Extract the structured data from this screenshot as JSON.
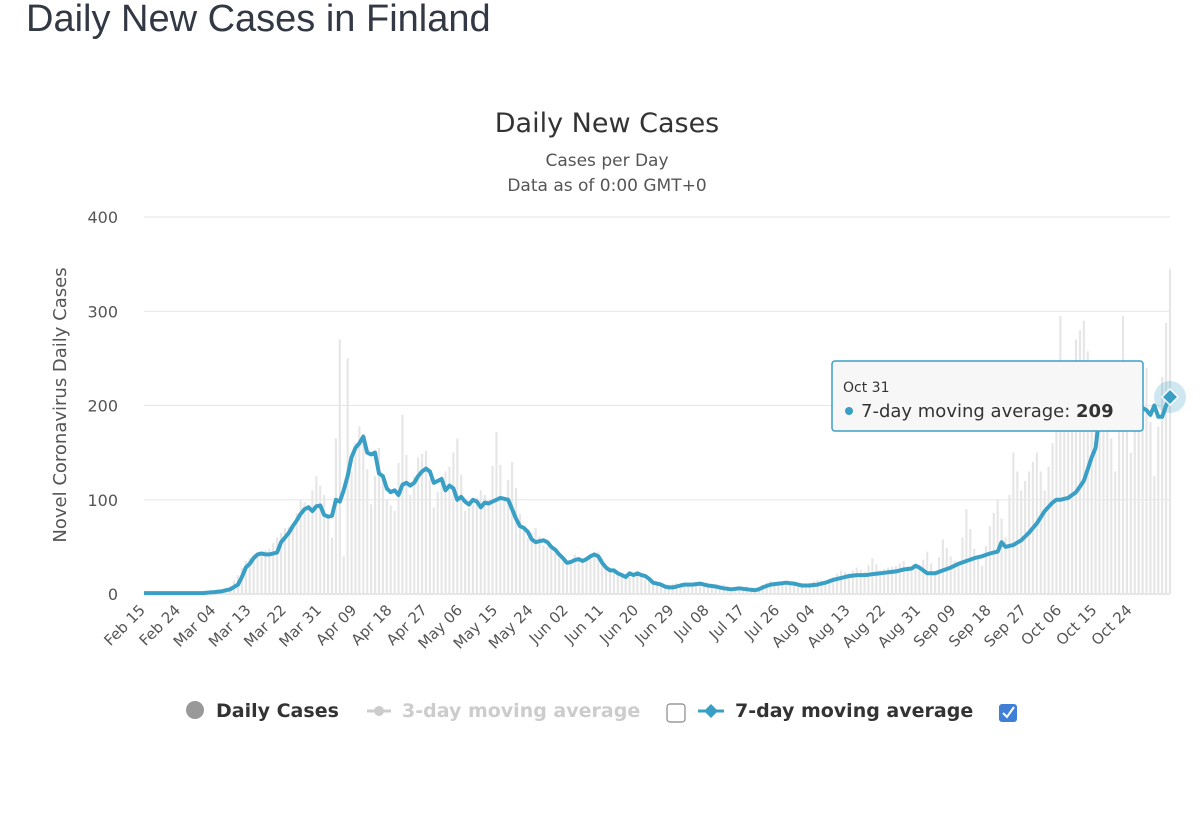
{
  "page": {
    "title": "Daily New Cases in Finland"
  },
  "chart_data": {
    "type": "bar",
    "title": "Daily New Cases",
    "subtitle": "Cases per Day",
    "subtitle2": "Data as of 0:00 GMT+0",
    "ylabel": "Novel Coronavirus Daily Cases",
    "xlabel": "",
    "ylim": [
      0,
      400
    ],
    "y_ticks": [
      "0",
      "100",
      "200",
      "300",
      "400"
    ],
    "grid": true,
    "x_tick_labels": [
      "Feb 15",
      "Feb 24",
      "Mar 04",
      "Mar 13",
      "Mar 22",
      "Mar 31",
      "Apr 09",
      "Apr 18",
      "Apr 27",
      "May 06",
      "May 15",
      "May 24",
      "Jun 02",
      "Jun 11",
      "Jun 20",
      "Jun 29",
      "Jul 08",
      "Jul 17",
      "Jul 26",
      "Aug 04",
      "Aug 13",
      "Aug 22",
      "Aug 31",
      "Sep 09",
      "Sep 18",
      "Sep 27",
      "Oct 06",
      "Oct 15",
      "Oct 24"
    ],
    "colors": {
      "daily_bar": "#e6e6e6",
      "avg7_line": "#3a9fc5",
      "avg3": "#cccccc",
      "grid": "#e6e6e6",
      "legend_daily": "#999999",
      "checkbox": "#3f7fd6"
    },
    "series": [
      {
        "name": "Daily Cases",
        "points": [
          [
            0,
            1
          ],
          [
            5,
            1
          ],
          [
            10,
            1
          ],
          [
            14,
            2
          ],
          [
            17,
            3
          ],
          [
            20,
            5
          ],
          [
            22,
            8
          ],
          [
            24,
            20
          ],
          [
            26,
            35
          ],
          [
            28,
            42
          ],
          [
            30,
            45
          ],
          [
            32,
            48
          ],
          [
            34,
            60
          ],
          [
            36,
            70
          ],
          [
            38,
            72
          ],
          [
            40,
            100
          ],
          [
            42,
            95
          ],
          [
            44,
            125
          ],
          [
            46,
            105
          ],
          [
            48,
            60
          ],
          [
            50,
            270
          ],
          [
            51,
            40
          ],
          [
            52,
            250
          ],
          [
            53,
            130
          ],
          [
            54,
            160
          ],
          [
            55,
            178
          ],
          [
            56,
            170
          ],
          [
            58,
            95
          ],
          [
            60,
            155
          ],
          [
            62,
            100
          ],
          [
            64,
            88
          ],
          [
            66,
            190
          ],
          [
            68,
            105
          ],
          [
            70,
            145
          ],
          [
            72,
            152
          ],
          [
            74,
            92
          ],
          [
            76,
            125
          ],
          [
            78,
            135
          ],
          [
            80,
            165
          ],
          [
            82,
            88
          ],
          [
            84,
            95
          ],
          [
            86,
            110
          ],
          [
            88,
            100
          ],
          [
            90,
            172
          ],
          [
            92,
            102
          ],
          [
            94,
            140
          ],
          [
            96,
            85
          ],
          [
            98,
            60
          ],
          [
            100,
            70
          ],
          [
            102,
            52
          ],
          [
            104,
            48
          ],
          [
            106,
            38
          ],
          [
            108,
            30
          ],
          [
            110,
            42
          ],
          [
            112,
            35
          ],
          [
            114,
            40
          ],
          [
            116,
            45
          ],
          [
            118,
            30
          ],
          [
            120,
            25
          ],
          [
            122,
            20
          ],
          [
            124,
            18
          ],
          [
            126,
            22
          ],
          [
            128,
            15
          ],
          [
            130,
            12
          ],
          [
            132,
            8
          ],
          [
            134,
            10
          ],
          [
            136,
            12
          ],
          [
            138,
            8
          ],
          [
            140,
            9
          ],
          [
            142,
            11
          ],
          [
            144,
            9
          ],
          [
            146,
            8
          ],
          [
            148,
            10
          ],
          [
            150,
            7
          ],
          [
            152,
            6
          ],
          [
            154,
            8
          ],
          [
            156,
            5
          ],
          [
            158,
            10
          ],
          [
            160,
            14
          ],
          [
            162,
            10
          ],
          [
            164,
            12
          ],
          [
            166,
            9
          ],
          [
            168,
            10
          ],
          [
            170,
            12
          ],
          [
            172,
            15
          ],
          [
            174,
            14
          ],
          [
            176,
            18
          ],
          [
            178,
            25
          ],
          [
            180,
            22
          ],
          [
            182,
            28
          ],
          [
            184,
            24
          ],
          [
            186,
            38
          ],
          [
            188,
            25
          ],
          [
            190,
            28
          ],
          [
            192,
            30
          ],
          [
            194,
            35
          ],
          [
            196,
            24
          ],
          [
            198,
            28
          ],
          [
            200,
            45
          ],
          [
            202,
            20
          ],
          [
            204,
            58
          ],
          [
            206,
            40
          ],
          [
            208,
            30
          ],
          [
            210,
            90
          ],
          [
            212,
            48
          ],
          [
            214,
            30
          ],
          [
            216,
            72
          ],
          [
            218,
            100
          ],
          [
            220,
            60
          ],
          [
            222,
            150
          ],
          [
            224,
            110
          ],
          [
            226,
            130
          ],
          [
            228,
            150
          ],
          [
            230,
            110
          ],
          [
            232,
            160
          ],
          [
            234,
            295
          ],
          [
            236,
            200
          ],
          [
            238,
            270
          ],
          [
            240,
            290
          ],
          [
            242,
            225
          ],
          [
            244,
            235
          ],
          [
            246,
            200
          ],
          [
            248,
            130
          ],
          [
            250,
            295
          ],
          [
            252,
            150
          ],
          [
            254,
            200
          ],
          [
            256,
            240
          ],
          [
            258,
            125
          ],
          [
            260,
            230
          ],
          [
            262,
            345
          ]
        ]
      },
      {
        "name": "3-day moving average",
        "points": []
      },
      {
        "name": "7-day moving average",
        "points": [
          [
            0,
            1
          ],
          [
            15,
            1
          ],
          [
            18,
            2
          ],
          [
            20,
            3
          ],
          [
            22,
            5
          ],
          [
            24,
            10
          ],
          [
            25,
            18
          ],
          [
            26,
            28
          ],
          [
            27,
            32
          ],
          [
            28,
            38
          ],
          [
            29,
            42
          ],
          [
            30,
            43
          ],
          [
            31,
            42
          ],
          [
            32,
            42
          ],
          [
            33,
            43
          ],
          [
            34,
            44
          ],
          [
            35,
            55
          ],
          [
            36,
            60
          ],
          [
            37,
            65
          ],
          [
            38,
            72
          ],
          [
            39,
            78
          ],
          [
            40,
            85
          ],
          [
            41,
            90
          ],
          [
            42,
            92
          ],
          [
            43,
            88
          ],
          [
            44,
            93
          ],
          [
            45,
            94
          ],
          [
            46,
            84
          ],
          [
            47,
            82
          ],
          [
            48,
            83
          ],
          [
            49,
            100
          ],
          [
            50,
            98
          ],
          [
            51,
            110
          ],
          [
            52,
            125
          ],
          [
            53,
            145
          ],
          [
            54,
            155
          ],
          [
            55,
            160
          ],
          [
            56,
            167
          ],
          [
            57,
            150
          ],
          [
            58,
            148
          ],
          [
            59,
            150
          ],
          [
            60,
            128
          ],
          [
            61,
            125
          ],
          [
            62,
            112
          ],
          [
            63,
            108
          ],
          [
            64,
            110
          ],
          [
            65,
            105
          ],
          [
            66,
            116
          ],
          [
            67,
            118
          ],
          [
            68,
            115
          ],
          [
            69,
            118
          ],
          [
            70,
            125
          ],
          [
            71,
            130
          ],
          [
            72,
            133
          ],
          [
            73,
            130
          ],
          [
            74,
            118
          ],
          [
            75,
            120
          ],
          [
            76,
            122
          ],
          [
            77,
            110
          ],
          [
            78,
            115
          ],
          [
            79,
            112
          ],
          [
            80,
            100
          ],
          [
            81,
            103
          ],
          [
            82,
            98
          ],
          [
            83,
            95
          ],
          [
            84,
            100
          ],
          [
            85,
            98
          ],
          [
            86,
            92
          ],
          [
            87,
            97
          ],
          [
            88,
            96
          ],
          [
            89,
            98
          ],
          [
            90,
            100
          ],
          [
            91,
            102
          ],
          [
            92,
            101
          ],
          [
            93,
            100
          ],
          [
            94,
            90
          ],
          [
            95,
            80
          ],
          [
            96,
            72
          ],
          [
            97,
            70
          ],
          [
            98,
            66
          ],
          [
            99,
            58
          ],
          [
            100,
            55
          ],
          [
            101,
            56
          ],
          [
            102,
            57
          ],
          [
            103,
            55
          ],
          [
            104,
            50
          ],
          [
            105,
            47
          ],
          [
            106,
            42
          ],
          [
            107,
            38
          ],
          [
            108,
            33
          ],
          [
            109,
            34
          ],
          [
            110,
            36
          ],
          [
            111,
            37
          ],
          [
            112,
            35
          ],
          [
            113,
            37
          ],
          [
            114,
            40
          ],
          [
            115,
            42
          ],
          [
            116,
            40
          ],
          [
            117,
            33
          ],
          [
            118,
            28
          ],
          [
            119,
            25
          ],
          [
            120,
            25
          ],
          [
            121,
            22
          ],
          [
            122,
            20
          ],
          [
            123,
            18
          ],
          [
            124,
            22
          ],
          [
            125,
            20
          ],
          [
            126,
            22
          ],
          [
            127,
            20
          ],
          [
            128,
            19
          ],
          [
            129,
            16
          ],
          [
            130,
            12
          ],
          [
            131,
            11
          ],
          [
            132,
            10
          ],
          [
            133,
            8
          ],
          [
            134,
            7
          ],
          [
            135,
            7
          ],
          [
            136,
            8
          ],
          [
            137,
            9
          ],
          [
            138,
            10
          ],
          [
            140,
            10
          ],
          [
            142,
            11
          ],
          [
            144,
            9
          ],
          [
            146,
            8
          ],
          [
            148,
            6
          ],
          [
            150,
            5
          ],
          [
            152,
            6
          ],
          [
            154,
            5
          ],
          [
            156,
            4
          ],
          [
            157,
            5
          ],
          [
            158,
            7
          ],
          [
            160,
            10
          ],
          [
            162,
            11
          ],
          [
            164,
            12
          ],
          [
            166,
            11
          ],
          [
            168,
            9
          ],
          [
            170,
            9
          ],
          [
            172,
            10
          ],
          [
            174,
            12
          ],
          [
            176,
            15
          ],
          [
            178,
            17
          ],
          [
            180,
            19
          ],
          [
            182,
            20
          ],
          [
            184,
            20
          ],
          [
            186,
            21
          ],
          [
            188,
            22
          ],
          [
            190,
            23
          ],
          [
            192,
            24
          ],
          [
            194,
            26
          ],
          [
            196,
            27
          ],
          [
            197,
            30
          ],
          [
            198,
            28
          ],
          [
            199,
            25
          ],
          [
            200,
            22
          ],
          [
            202,
            22
          ],
          [
            204,
            25
          ],
          [
            206,
            28
          ],
          [
            208,
            32
          ],
          [
            210,
            35
          ],
          [
            212,
            38
          ],
          [
            214,
            40
          ],
          [
            216,
            43
          ],
          [
            218,
            45
          ],
          [
            219,
            55
          ],
          [
            220,
            50
          ],
          [
            222,
            52
          ],
          [
            224,
            57
          ],
          [
            226,
            65
          ],
          [
            228,
            75
          ],
          [
            230,
            88
          ],
          [
            232,
            97
          ],
          [
            233,
            100
          ],
          [
            234,
            100
          ],
          [
            236,
            102
          ],
          [
            238,
            108
          ],
          [
            240,
            120
          ],
          [
            242,
            145
          ],
          [
            243,
            155
          ],
          [
            244,
            190
          ],
          [
            246,
            210
          ],
          [
            248,
            225
          ],
          [
            250,
            237
          ],
          [
            251,
            230
          ],
          [
            252,
            220
          ],
          [
            254,
            200
          ],
          [
            256,
            195
          ],
          [
            257,
            190
          ],
          [
            258,
            200
          ],
          [
            259,
            188
          ],
          [
            260,
            188
          ],
          [
            261,
            200
          ],
          [
            262,
            209
          ]
        ]
      }
    ],
    "x_count": 263,
    "legend": {
      "placement": "bottom",
      "items": [
        "Daily Cases",
        "3-day moving average",
        "7-day moving average"
      ]
    },
    "tooltip": {
      "date": "Oct 31",
      "label": "7-day moving average: ",
      "value": "209"
    }
  }
}
